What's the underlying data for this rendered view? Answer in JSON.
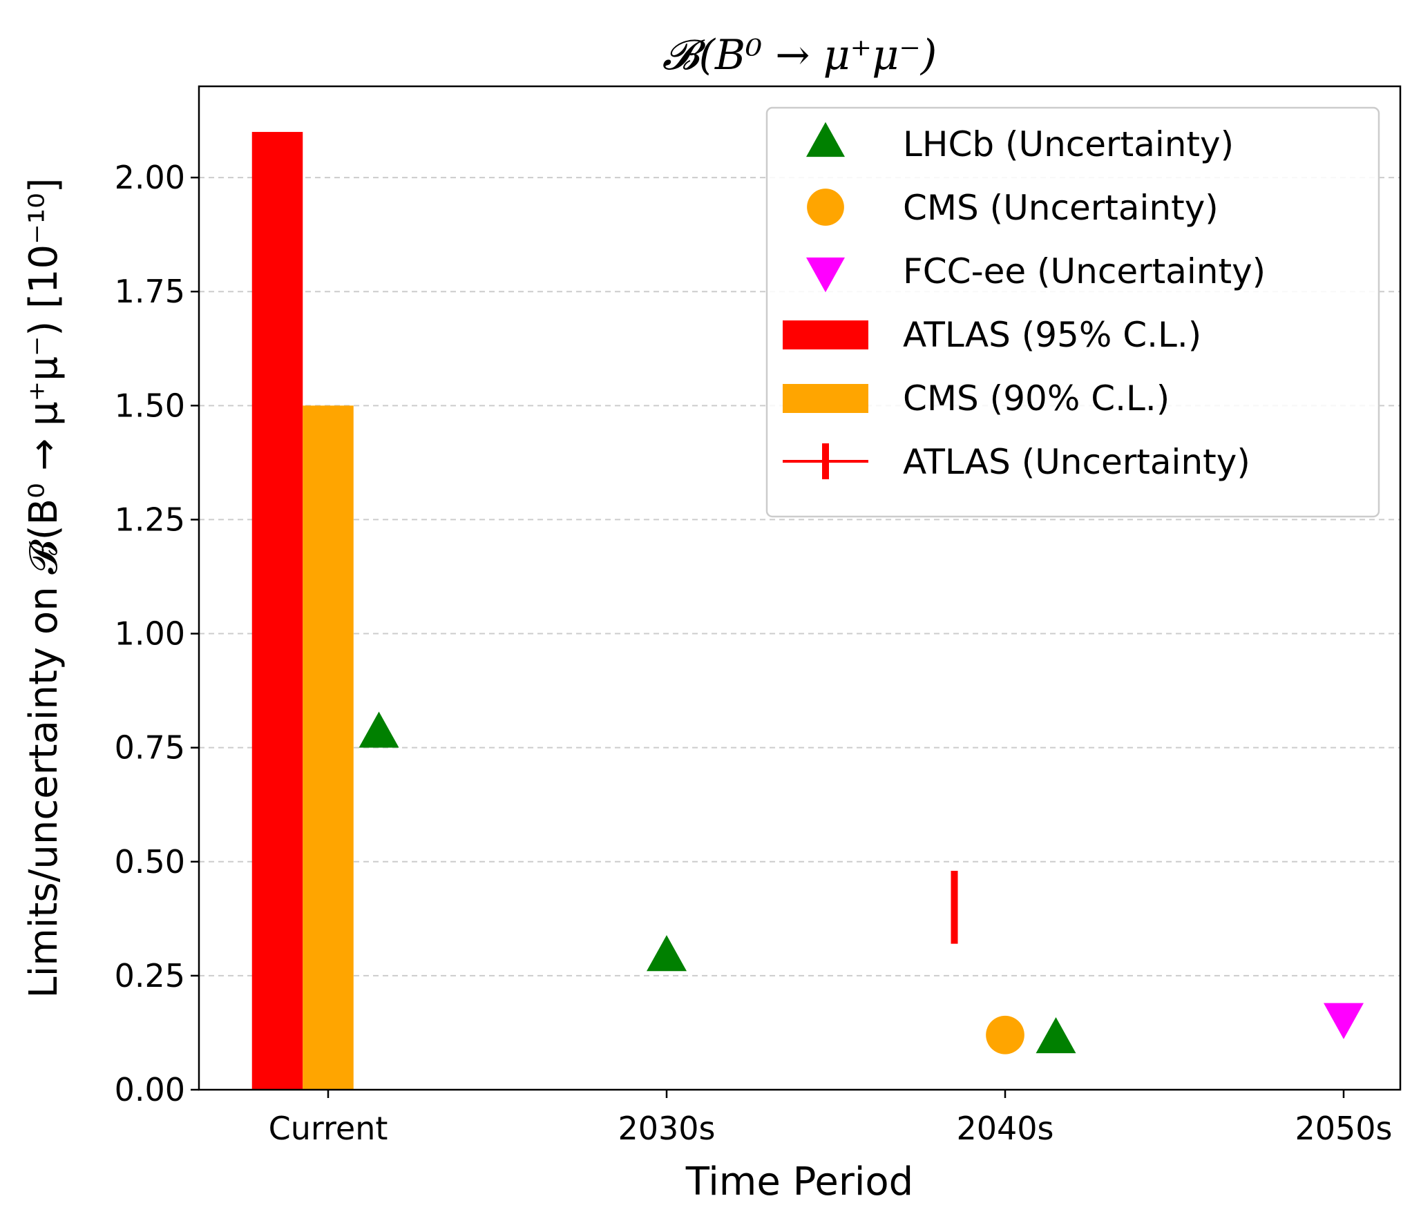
{
  "chart_data": {
    "type": "bar",
    "title": "𝓑(B⁰ → μ⁺μ⁻)",
    "xlabel": "Time Period",
    "ylabel": "Limits/uncertainty on 𝓑(B⁰ → μ⁺μ⁻) [10⁻¹⁰]",
    "categories": [
      "Current",
      "2030s",
      "2040s",
      "2050s"
    ],
    "yticks": [
      "0.00",
      "0.25",
      "0.50",
      "0.75",
      "1.00",
      "1.25",
      "1.50",
      "1.75",
      "2.00"
    ],
    "ylim": [
      0,
      2.2
    ],
    "grid": "y-dashed",
    "legend_position": "top-right",
    "bars": [
      {
        "name": "ATLAS (95% C.L.)",
        "color": "#ff0000",
        "category": "Current",
        "offset": -0.15,
        "width": 0.15,
        "value": 2.1
      },
      {
        "name": "CMS (90% C.L.)",
        "color": "#ffa500",
        "category": "Current",
        "offset": 0.0,
        "width": 0.15,
        "value": 1.5
      }
    ],
    "markers": [
      {
        "name": "LHCb (Uncertainty)",
        "marker": "triangle-up",
        "color": "#008000",
        "points": [
          {
            "category": "Current",
            "offset": 0.15,
            "y": 0.78
          },
          {
            "category": "2030s",
            "offset": 0.0,
            "y": 0.29
          },
          {
            "category": "2040s",
            "offset": 0.15,
            "y": 0.11
          }
        ]
      },
      {
        "name": "CMS (Uncertainty)",
        "marker": "circle",
        "color": "#ffa500",
        "points": [
          {
            "category": "2040s",
            "offset": 0.0,
            "y": 0.12
          }
        ]
      },
      {
        "name": "FCC-ee (Uncertainty)",
        "marker": "triangle-down",
        "color": "#ff00ff",
        "points": [
          {
            "category": "2050s",
            "offset": 0.0,
            "y": 0.16
          }
        ]
      }
    ],
    "errorbars": [
      {
        "name": "ATLAS (Uncertainty)",
        "color": "#ff0000",
        "category": "2040s",
        "offset": -0.15,
        "y_low": 0.32,
        "y_high": 0.48
      }
    ],
    "legend": [
      {
        "label": "LHCb (Uncertainty)",
        "kind": "triangle-up",
        "color": "#008000"
      },
      {
        "label": "CMS (Uncertainty)",
        "kind": "circle",
        "color": "#ffa500"
      },
      {
        "label": "FCC-ee (Uncertainty)",
        "kind": "triangle-down",
        "color": "#ff00ff"
      },
      {
        "label": "ATLAS (95% C.L.)",
        "kind": "patch",
        "color": "#ff0000"
      },
      {
        "label": "CMS (90% C.L.)",
        "kind": "patch",
        "color": "#ffa500"
      },
      {
        "label": "ATLAS (Uncertainty)",
        "kind": "errorbar",
        "color": "#ff0000"
      }
    ]
  }
}
